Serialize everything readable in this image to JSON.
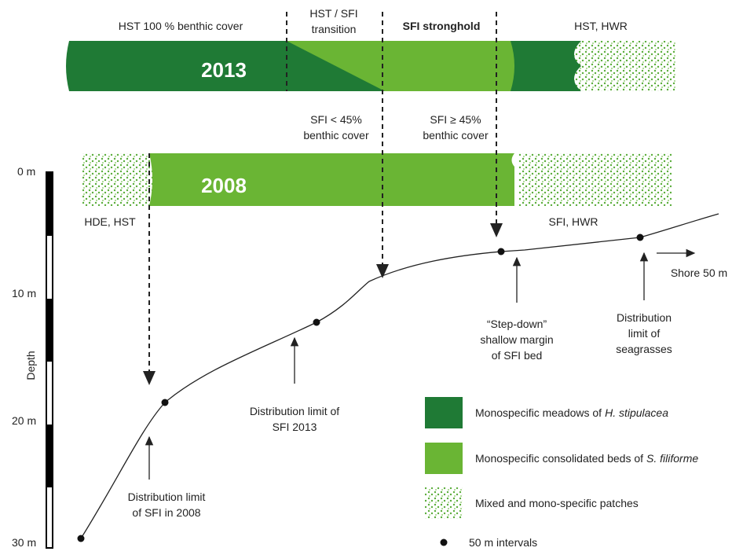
{
  "bar_2013": {
    "label": "2013",
    "zones": {
      "hst": "HST 100 % benthic cover",
      "transition": [
        "HST / SFI",
        "transition"
      ],
      "stronghold": "SFI stronghold",
      "hst_hwr": "HST, HWR"
    },
    "below": {
      "low": [
        "SFI  < 45%",
        "benthic cover"
      ],
      "high": [
        "SFI ≥ 45%",
        "benthic cover"
      ]
    }
  },
  "bar_2008": {
    "label": "2008",
    "left": "HDE, HST",
    "right": "SFI, HWR"
  },
  "depth_axis": {
    "title": "Depth",
    "ticks": [
      "0 m",
      "10 m",
      "20 m",
      "30 m"
    ]
  },
  "annotations": {
    "shore": "Shore 50 m",
    "step_down": [
      "“Step-down”",
      "shallow margin",
      "of SFI bed"
    ],
    "seagrass_limit": [
      "Distribution",
      "limit of",
      "seagrasses"
    ],
    "sfi_2013_limit": [
      "Distribution limit of",
      "SFI 2013"
    ],
    "sfi_2008_limit": [
      "Distribution limit",
      "of SFI in 2008"
    ]
  },
  "legend": {
    "items": [
      {
        "text": "Monospecific meadows of",
        "species": "H. stipulacea"
      },
      {
        "text": "Monospecific consolidated beds of",
        "species": "S. filiforme"
      },
      {
        "text": "Mixed and mono-specific patches"
      },
      {
        "text": "50 m intervals"
      }
    ]
  }
}
